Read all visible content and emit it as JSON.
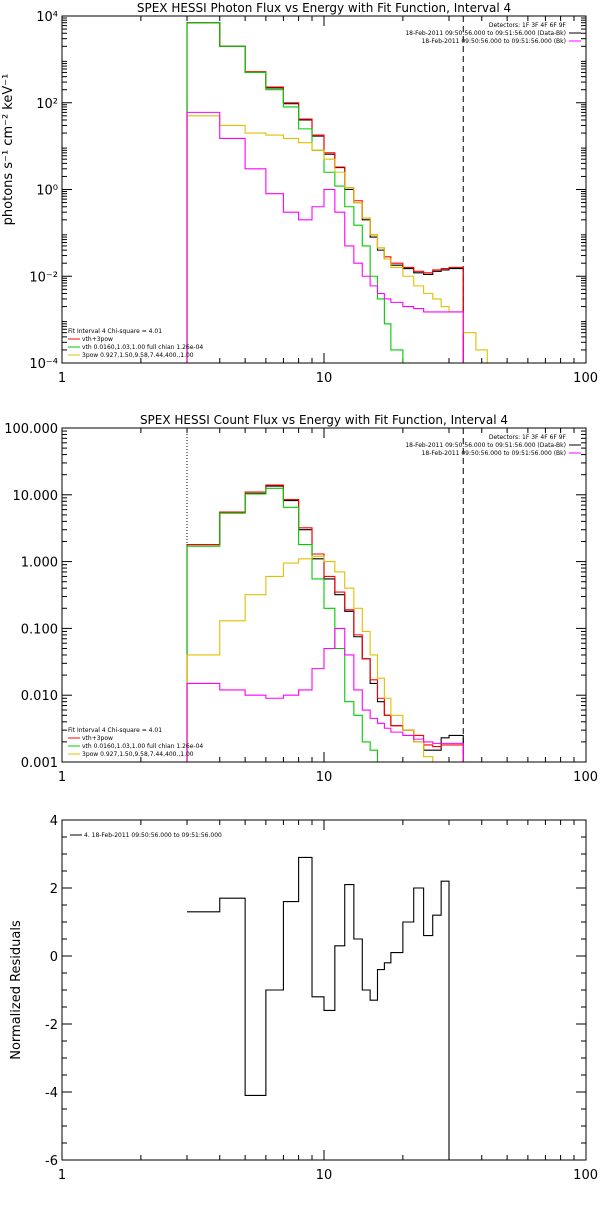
{
  "colors": {
    "data": "#000000",
    "total": "#ff0000",
    "thermal": "#00cc00",
    "power": "#e0c000",
    "background": "#ff00ff"
  },
  "chart_data": [
    {
      "type": "line",
      "title": "SPEX HESSI Photon Flux vs Energy with Fit Function, Interval 4",
      "xlabel": "",
      "ylabel": "photons s⁻¹ cm⁻² keV⁻¹",
      "xscale": "log",
      "yscale": "log",
      "xlim": [
        1,
        100
      ],
      "ylim": [
        0.0001,
        10000
      ],
      "x_ticks": [
        {
          "v": 1,
          "t": "1"
        },
        {
          "v": 10,
          "t": "10"
        },
        {
          "v": 100,
          "t": "100"
        }
      ],
      "y_ticks": [
        {
          "v": 0.0001,
          "t": "10⁻⁴"
        },
        {
          "v": 0.01,
          "t": "10⁻²"
        },
        {
          "v": 1,
          "t": "10⁰"
        },
        {
          "v": 100,
          "t": "10²"
        },
        {
          "v": 10000,
          "t": "10⁴"
        }
      ],
      "vlines": [
        {
          "x": 3.0,
          "style": "dotted"
        },
        {
          "x": 34.0,
          "style": "dashed"
        }
      ],
      "legend_top_right": [
        {
          "text": "Detectors: 1F 3F 4F 6F 9F",
          "color": null
        },
        {
          "text": "18-Feb-2011 09:50:56.000 to 09:51:56.000 (Data-Bk)",
          "color": "data"
        },
        {
          "text": "18-Feb-2011 09:50:56.000 to 09:51:56.000 (Bk)",
          "color": "background"
        }
      ],
      "legend_bottom_left": [
        {
          "text": "Fit Interval  4    Chi-square = 4.01",
          "color": null
        },
        {
          "text": "vth+3pow",
          "color": "total"
        },
        {
          "text": "vth 0.0160,1.03,1.00  full chian 1.26e-04",
          "color": "thermal"
        },
        {
          "text": "3pow 0.927,1.50,9.58,7.44,400.,1.00",
          "color": "power"
        }
      ],
      "bin_edges": [
        3,
        4,
        5,
        6,
        7,
        8,
        9,
        10,
        11,
        12,
        13,
        14,
        15,
        16,
        17,
        18,
        20,
        22,
        24,
        26,
        28,
        30,
        34,
        38,
        42,
        46
      ],
      "series": [
        {
          "name": "Data-Bk",
          "color": "data",
          "values": [
            7000,
            2000,
            500,
            220,
            95,
            40,
            17,
            6.5,
            3.2,
            1.0,
            0.5,
            0.2,
            0.08,
            0.04,
            0.025,
            0.018,
            0.015,
            0.012,
            0.011,
            0.013,
            0.014,
            0.015
          ]
        },
        {
          "name": "vth+3pow",
          "color": "total",
          "values": [
            7000,
            2000,
            520,
            230,
            100,
            42,
            18,
            7,
            3.3,
            1.1,
            0.55,
            0.22,
            0.09,
            0.045,
            0.028,
            0.02,
            0.016,
            0.013,
            0.012,
            0.014,
            0.015,
            0.016
          ]
        },
        {
          "name": "vth",
          "color": "thermal",
          "values": [
            7000,
            2000,
            500,
            200,
            80,
            25,
            8,
            2.5,
            1.2,
            0.4,
            0.15,
            0.05,
            0.01,
            0.003,
            0.0008,
            0.0002,
            5e-05
          ]
        },
        {
          "name": "3pow",
          "color": "power",
          "values": [
            50,
            30,
            20,
            18,
            15,
            12,
            8,
            5,
            2.5,
            1.1,
            0.5,
            0.22,
            0.09,
            0.045,
            0.025,
            0.016,
            0.01,
            0.006,
            0.004,
            0.003,
            0.002,
            0.0015,
            0.0005,
            0.0002,
            0.0001
          ]
        },
        {
          "name": "Bk",
          "color": "background",
          "values": [
            60,
            15,
            3,
            0.8,
            0.3,
            0.2,
            0.4,
            1.0,
            0.3,
            0.05,
            0.02,
            0.01,
            0.006,
            0.004,
            0.003,
            0.0025,
            0.002,
            0.0018,
            0.0015,
            0.0015,
            0.0015,
            0.0015
          ]
        }
      ]
    },
    {
      "type": "line",
      "title": "SPEX HESSI Count Flux vs Energy with Fit Function, Interval 4",
      "xlabel": "",
      "ylabel": "",
      "xscale": "log",
      "yscale": "log",
      "xlim": [
        1,
        100
      ],
      "ylim": [
        0.001,
        100
      ],
      "x_ticks": [
        {
          "v": 1,
          "t": "1"
        },
        {
          "v": 10,
          "t": "10"
        },
        {
          "v": 100,
          "t": "100"
        }
      ],
      "y_ticks": [
        {
          "v": 0.001,
          "t": "0.001"
        },
        {
          "v": 0.01,
          "t": "0.010"
        },
        {
          "v": 0.1,
          "t": "0.100"
        },
        {
          "v": 1,
          "t": "1.000"
        },
        {
          "v": 10,
          "t": "10.000"
        },
        {
          "v": 100,
          "t": "100.000"
        }
      ],
      "vlines": [
        {
          "x": 3.0,
          "style": "dotted"
        },
        {
          "x": 34.0,
          "style": "dashed"
        }
      ],
      "legend_top_right": [
        {
          "text": "Detectors: 1F 3F 4F 6F 9F",
          "color": null
        },
        {
          "text": "18-Feb-2011 09:50:56.000 to 09:51:56.000 (Data-Bk)",
          "color": "data"
        },
        {
          "text": "18-Feb-2011 09:50:56.000 to 09:51:56.000 (Bk)",
          "color": "background"
        }
      ],
      "legend_bottom_left": [
        {
          "text": "Fit Interval  4    Chi-square = 4.01",
          "color": null
        },
        {
          "text": "vth+3pow",
          "color": "total"
        },
        {
          "text": "vth 0.0160,1.03,1.00  full chian 1.26e-04",
          "color": "thermal"
        },
        {
          "text": "3pow 0.927,1.50,9.58,7.44,400.,1.00",
          "color": "power"
        }
      ],
      "bin_edges": [
        3,
        4,
        5,
        6,
        7,
        8,
        9,
        10,
        11,
        12,
        13,
        14,
        15,
        16,
        17,
        18,
        20,
        22,
        24,
        26,
        28,
        30,
        34
      ],
      "series": [
        {
          "name": "Data-Bk",
          "color": "data",
          "values": [
            1.8,
            5.5,
            10.5,
            13.5,
            8.2,
            3.0,
            1.1,
            0.55,
            0.32,
            0.18,
            0.075,
            0.035,
            0.015,
            0.008,
            0.005,
            0.0035,
            0.003,
            0.002,
            0.0015,
            0.0015,
            0.0023,
            0.0025
          ]
        },
        {
          "name": "vth+3pow",
          "color": "total",
          "values": [
            1.8,
            5.5,
            11,
            14,
            8.5,
            3.2,
            1.3,
            0.6,
            0.35,
            0.19,
            0.08,
            0.035,
            0.017,
            0.009,
            0.005,
            0.0035,
            0.003,
            0.0025,
            0.0018,
            0.0017,
            0.0018,
            0.0018
          ]
        },
        {
          "name": "vth",
          "color": "thermal",
          "values": [
            1.7,
            5.3,
            10.3,
            12.5,
            6.5,
            1.8,
            0.55,
            0.2,
            0.05,
            0.008,
            0.005,
            0.002,
            0.0015,
            0.001
          ]
        },
        {
          "name": "3pow",
          "color": "power",
          "values": [
            0.04,
            0.13,
            0.32,
            0.6,
            0.95,
            1.1,
            1.2,
            1.0,
            0.7,
            0.4,
            0.2,
            0.09,
            0.04,
            0.018,
            0.009,
            0.005,
            0.003,
            0.002,
            0.0012,
            0.001
          ]
        },
        {
          "name": "Bk",
          "color": "background",
          "values": [
            0.015,
            0.012,
            0.01,
            0.009,
            0.01,
            0.012,
            0.025,
            0.05,
            0.1,
            0.04,
            0.012,
            0.006,
            0.0045,
            0.0038,
            0.0032,
            0.0028,
            0.0025,
            0.0022,
            0.002,
            0.0019,
            0.0019,
            0.0019
          ]
        }
      ]
    },
    {
      "type": "line",
      "title": "",
      "xlabel": "",
      "ylabel": "Normalized Residuals",
      "xscale": "log",
      "yscale": "linear",
      "xlim": [
        1,
        100
      ],
      "ylim": [
        -6,
        4
      ],
      "x_ticks": [
        {
          "v": 1,
          "t": "1"
        },
        {
          "v": 10,
          "t": "10"
        },
        {
          "v": 100,
          "t": "100"
        }
      ],
      "y_ticks": [
        {
          "v": -6,
          "t": "-6"
        },
        {
          "v": -4,
          "t": "-4"
        },
        {
          "v": -2,
          "t": "-2"
        },
        {
          "v": 0,
          "t": "0"
        },
        {
          "v": 2,
          "t": "2"
        },
        {
          "v": 4,
          "t": "4"
        }
      ],
      "legend_top_left": [
        {
          "text": "4. 18-Feb-2011 09:50:56.000 to 09:51:56.000",
          "color": "data"
        }
      ],
      "bin_edges": [
        3,
        4,
        5,
        6,
        7,
        8,
        9,
        10,
        11,
        12,
        13,
        14,
        15,
        16,
        17,
        18,
        20,
        22,
        24,
        26,
        28,
        30,
        34
      ],
      "series": [
        {
          "name": "",
          "color": "data",
          "values": [
            1.3,
            1.7,
            -4.1,
            -1.0,
            1.6,
            2.9,
            -1.2,
            -1.6,
            0.3,
            2.1,
            0.5,
            -1.0,
            -1.3,
            -0.4,
            -0.2,
            0.1,
            1.0,
            2.0,
            0.6,
            1.2,
            2.2,
            -6.0
          ]
        }
      ]
    }
  ]
}
